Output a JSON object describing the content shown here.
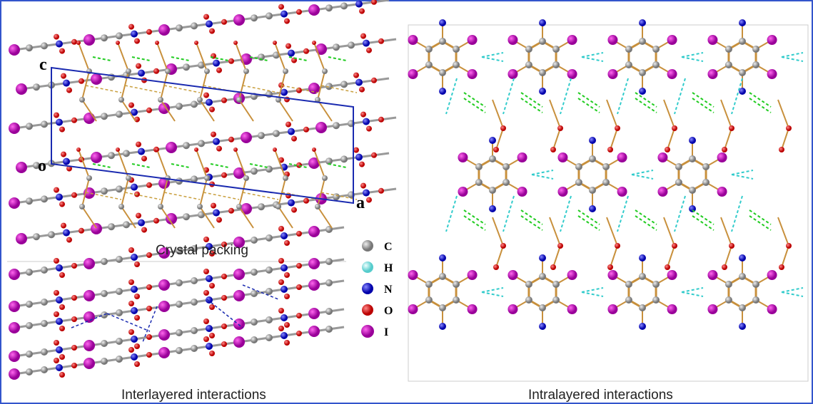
{
  "crystal_packing": {
    "caption": "Crystal packing",
    "axis_labels": {
      "c": "c",
      "o": "o",
      "a": "a"
    }
  },
  "legend": [
    {
      "label": "C"
    },
    {
      "label": "H"
    },
    {
      "label": "N"
    },
    {
      "label": "O"
    },
    {
      "label": "I"
    }
  ],
  "interlayered": {
    "caption": "Interlayered interactions"
  },
  "intralayered": {
    "caption": "Intralayered interactions"
  }
}
